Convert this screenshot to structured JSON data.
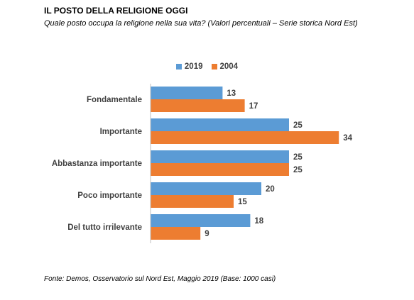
{
  "title": "IL POSTO DELLA RELIGIONE OGGI",
  "subtitle": "Quale posto occupa la religione nella sua vita? (Valori percentuali – Serie storica Nord Est)",
  "source": "Fonte: Demos, Osservatorio sul Nord Est, Maggio 2019 (Base: 1000 casi)",
  "colors": {
    "s2019": "#5B9BD5",
    "s2004": "#ED7D31",
    "axis": "#BFBFBF",
    "label": "#404040"
  },
  "chart_data": {
    "type": "bar",
    "orientation": "horizontal",
    "categories": [
      "Fondamentale",
      "Importante",
      "Abbastanza importante",
      "Poco importante",
      "Del tutto irrilevante"
    ],
    "series": [
      {
        "name": "2019",
        "values": [
          13,
          25,
          25,
          20,
          18
        ]
      },
      {
        "name": "2004",
        "values": [
          17,
          34,
          25,
          15,
          9
        ]
      }
    ],
    "xlim": [
      0,
      40
    ],
    "legend_position": "top",
    "grid": false,
    "data_labels": true
  }
}
